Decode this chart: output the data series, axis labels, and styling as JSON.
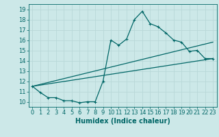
{
  "xlabel": "Humidex (Indice chaleur)",
  "bg_color": "#cce8e8",
  "grid_color": "#b8d8d8",
  "line_color": "#006666",
  "xlim": [
    -0.5,
    23.5
  ],
  "ylim": [
    9.5,
    19.5
  ],
  "xticks": [
    0,
    1,
    2,
    3,
    4,
    5,
    6,
    7,
    8,
    9,
    10,
    11,
    12,
    13,
    14,
    15,
    16,
    17,
    18,
    19,
    20,
    21,
    22,
    23
  ],
  "yticks": [
    10,
    11,
    12,
    13,
    14,
    15,
    16,
    17,
    18,
    19
  ],
  "line1_x": [
    0,
    1,
    2,
    3,
    4,
    5,
    6,
    7,
    8,
    9,
    10,
    11,
    12,
    13,
    14,
    15,
    16,
    17,
    18,
    19,
    20,
    21,
    22,
    23
  ],
  "line1_y": [
    11.5,
    10.9,
    10.4,
    10.4,
    10.1,
    10.1,
    9.9,
    10.0,
    10.0,
    12.0,
    16.0,
    15.5,
    16.1,
    18.0,
    18.8,
    17.6,
    17.3,
    16.7,
    16.0,
    15.8,
    14.9,
    15.0,
    14.2,
    14.2
  ],
  "line2_x": [
    0,
    23
  ],
  "line2_y": [
    11.5,
    15.8
  ],
  "line3_x": [
    0,
    23
  ],
  "line3_y": [
    11.5,
    14.2
  ],
  "marker": "+",
  "marker_size": 3,
  "linewidth": 0.9,
  "tick_fontsize": 6,
  "xlabel_fontsize": 7
}
